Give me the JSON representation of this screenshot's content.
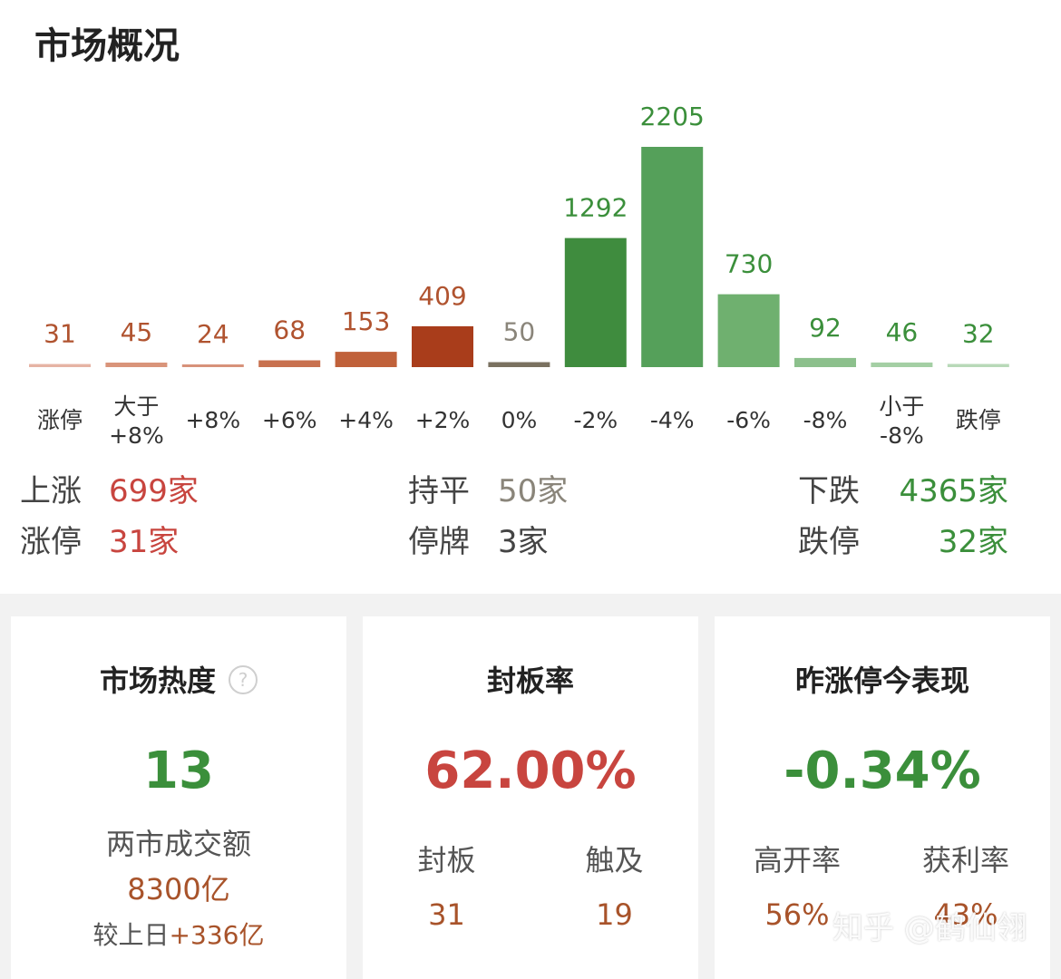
{
  "title": "市场概况",
  "chart_data": {
    "type": "bar",
    "categories": [
      [
        "涨停"
      ],
      [
        "大于",
        "+8%"
      ],
      [
        "+8%"
      ],
      [
        "+6%"
      ],
      [
        "+4%"
      ],
      [
        "+2%"
      ],
      [
        "0%"
      ],
      [
        "-2%"
      ],
      [
        "-4%"
      ],
      [
        "-6%"
      ],
      [
        "-8%"
      ],
      [
        "小于",
        "-8%"
      ],
      [
        "跌停"
      ]
    ],
    "values": [
      31,
      45,
      24,
      68,
      153,
      409,
      50,
      1292,
      2205,
      730,
      92,
      46,
      32
    ],
    "colors": [
      "#e6b3a4",
      "#d9947a",
      "#d7927a",
      "#c8714f",
      "#c0613a",
      "#a93d1b",
      "#7a7160",
      "#3f8c3e",
      "#55a05a",
      "#6fb06f",
      "#8cc08c",
      "#a4cfa4",
      "#b8d9b8"
    ],
    "label_colors": [
      "#b0532f",
      "#b0532f",
      "#b0532f",
      "#b0532f",
      "#b0532f",
      "#b0532f",
      "#8a857a",
      "#3b8f3b",
      "#3b8f3b",
      "#3b8f3b",
      "#3b8f3b",
      "#3b8f3b",
      "#3b8f3b"
    ]
  },
  "stats": {
    "up_label": "上涨",
    "up_value": "699家",
    "flat_label": "持平",
    "flat_value": "50家",
    "down_label": "下跌",
    "down_value": "4365家",
    "limit_up_label": "涨停",
    "limit_up_value": "31家",
    "suspended_label": "停牌",
    "suspended_value": "3家",
    "limit_down_label": "跌停",
    "limit_down_value": "32家"
  },
  "cards": {
    "heat": {
      "title": "市场热度",
      "help_icon": "?",
      "value": "13",
      "turnover_label": "两市成交额",
      "turnover_value": "8300亿",
      "compare_label": "较上日",
      "compare_value": "+336亿"
    },
    "seal": {
      "title": "封板率",
      "value": "62.00%",
      "sealed_label": "封板",
      "sealed_value": "31",
      "touched_label": "触及",
      "touched_value": "19"
    },
    "yesterday": {
      "title": "昨涨停今表现",
      "value": "-0.34%",
      "high_open_label": "高开率",
      "high_open_value": "56%",
      "profit_label": "获利率",
      "profit_value": "43%"
    }
  },
  "watermark": "知乎 @鹤仙翎",
  "colors": {
    "red": "#c8453f",
    "green": "#3b8f3b",
    "brown": "#a8532a"
  }
}
